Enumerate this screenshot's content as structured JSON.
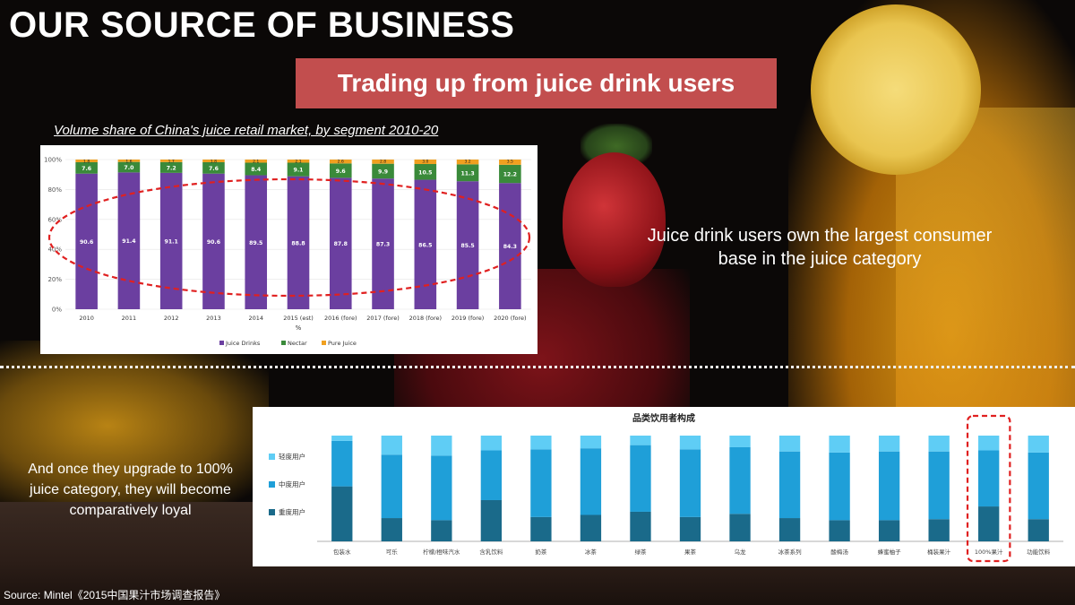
{
  "slide": {
    "title": "OUR SOURCE OF BUSINESS",
    "subtitle": "Trading up from juice drink users",
    "chart1_caption": "Volume share of China's juice retail market, by segment 2010-20",
    "text_right": "Juice drink users own the largest consumer base in the juice category",
    "text_left": "And once they upgrade to 100% juice category, they will become comparatively loyal",
    "source": "Source: Mintel《2015中国果汁市场调查报告》",
    "colors": {
      "subtitle_bg": "#c24e4e",
      "juice_drinks": "#6b3fa0",
      "nectar": "#3a8a3a",
      "pure_juice": "#f0a020",
      "light_users": "#5fcdf5",
      "medium_users": "#1f9fd8",
      "heavy_users": "#1a6a8a",
      "highlight": "#e02020"
    }
  },
  "chart_data": [
    {
      "type": "bar",
      "stacked": true,
      "categories": [
        "2010",
        "2011",
        "2012",
        "2013",
        "2014",
        "2015 (est)",
        "2016 (fore)",
        "2017 (fore)",
        "2018 (fore)",
        "2019 (fore)",
        "2020 (fore)"
      ],
      "series": [
        {
          "name": "Juice Drinks",
          "values": [
            90.6,
            91.4,
            91.1,
            90.6,
            89.5,
            88.8,
            87.8,
            87.3,
            86.5,
            85.5,
            84.3
          ],
          "labels": [
            "90.6",
            "91.4",
            "91.1",
            "90.6",
            "89.5",
            "88.8",
            "87.8",
            "87.3",
            "86.5",
            "85.5",
            "84.3"
          ]
        },
        {
          "name": "Nectar",
          "values": [
            7.6,
            7.0,
            7.2,
            7.6,
            8.4,
            9.1,
            9.6,
            9.9,
            10.5,
            11.3,
            12.2
          ],
          "labels": [
            "7.6",
            "7.0",
            "7.2",
            "7.6",
            "8.4",
            "9.1",
            "9.6",
            "9.9",
            "10.5",
            "11.3",
            "12.2"
          ]
        },
        {
          "name": "Pure Juice",
          "values": [
            1.8,
            1.6,
            1.7,
            1.8,
            2.1,
            2.1,
            2.6,
            2.8,
            3.0,
            3.2,
            3.5
          ],
          "labels": [
            "1.8",
            "1.6",
            "1.7",
            "1.8",
            "2.1",
            "2.1",
            "2.6",
            "2.8",
            "3.0",
            "3.2",
            "3.5"
          ]
        }
      ],
      "yticks": [
        "0%",
        "20%",
        "40%",
        "60%",
        "80%",
        "100%"
      ],
      "ylim": [
        0,
        100
      ],
      "xlabel": "%",
      "legend_position": "bottom",
      "annotation": "red dashed ellipse around Juice Drinks bars"
    },
    {
      "type": "bar",
      "stacked": true,
      "title": "品类饮用者构成",
      "categories": [
        "包装水",
        "可乐",
        "柠檬/橙味汽水",
        "含乳饮料",
        "奶茶",
        "冰茶",
        "绿茶",
        "果茶",
        "乌龙",
        "冰茶系列",
        "酸梅汤",
        "蜂蜜柚子",
        "桶装果汁",
        "100%果汁",
        "功能饮料"
      ],
      "series": [
        {
          "name": "重度用户",
          "values": [
            52,
            22,
            20,
            39,
            23,
            25,
            28,
            23,
            26,
            22,
            20,
            20,
            21,
            33,
            21
          ]
        },
        {
          "name": "中度用户",
          "values": [
            43,
            60,
            61,
            47,
            64,
            63,
            63,
            64,
            63,
            63,
            64,
            65,
            64,
            53,
            63
          ]
        },
        {
          "name": "轻度用户",
          "values": [
            5,
            18,
            19,
            14,
            13,
            12,
            9,
            13,
            11,
            15,
            16,
            15,
            15,
            14,
            16
          ]
        }
      ],
      "ylim": [
        0,
        100
      ],
      "legend_position": "left",
      "highlight_category": "100%果汁"
    }
  ]
}
